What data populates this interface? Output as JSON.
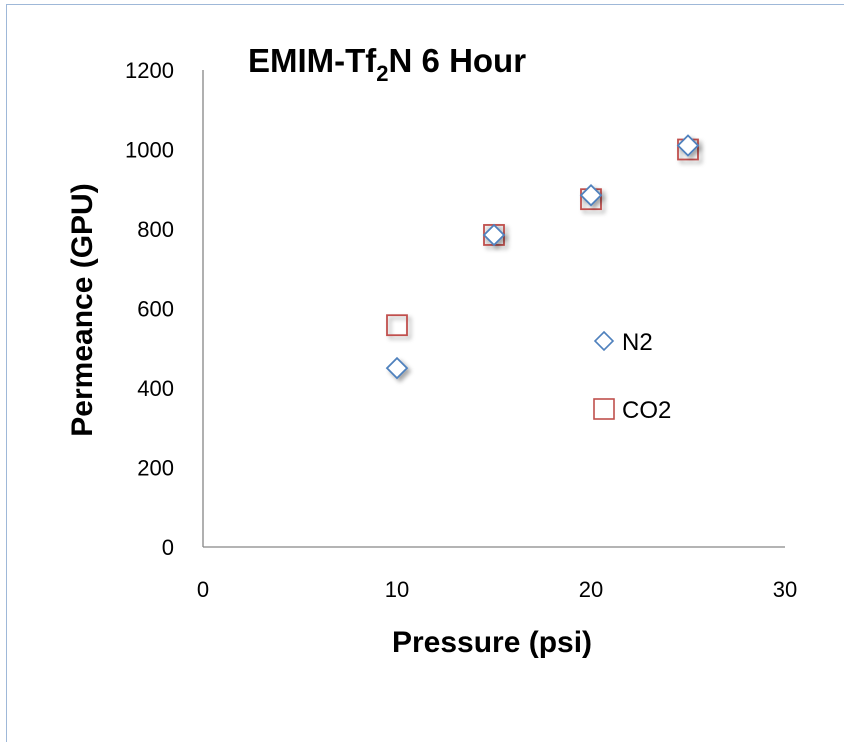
{
  "chart_data": {
    "type": "scatter",
    "title": {
      "main": "EMIM-Tf",
      "sub": "2",
      "rest": "N 6 Hour"
    },
    "xlabel": "Pressure (psi)",
    "ylabel": "Permeance (GPU)",
    "xlim": [
      0,
      30
    ],
    "ylim": [
      0,
      1200
    ],
    "xticks": [
      0,
      10,
      20,
      30
    ],
    "yticks": [
      0,
      200,
      400,
      600,
      800,
      1000,
      1200
    ],
    "grid": false,
    "legend_position": "right",
    "series": [
      {
        "name": "N2",
        "marker": "diamond",
        "color": "#4f81bd",
        "x": [
          10,
          15,
          20,
          25
        ],
        "y": [
          450,
          785,
          885,
          1010
        ]
      },
      {
        "name": "CO2",
        "marker": "square",
        "color": "#c0504d",
        "x": [
          10,
          15,
          20,
          25
        ],
        "y": [
          558,
          785,
          875,
          1000
        ]
      }
    ]
  }
}
